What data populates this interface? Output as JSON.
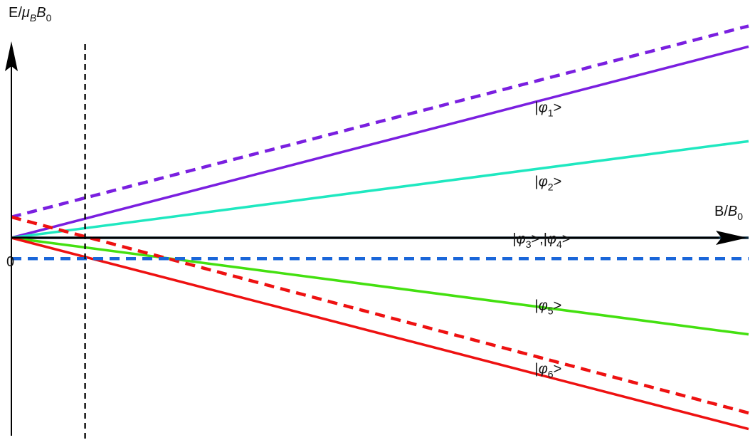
{
  "chart_data": {
    "type": "line",
    "title": "",
    "ylabel": {
      "prefix": "E/",
      "mu": "μ",
      "mu_sub": "B",
      "b": "B",
      "b_sub": "0"
    },
    "xlabel": {
      "prefix": "B/",
      "b": "B",
      "b_sub": "0"
    },
    "origin_label": "0",
    "xlim": [
      0,
      1
    ],
    "ylim": [
      -1,
      1
    ],
    "vertical_marker_x": 0.1,
    "colors": {
      "phi1": "#7a1fe0",
      "phi2": "#1fe8c0",
      "phi34": "#0a2a40",
      "phi5": "#44e010",
      "phi6": "#ee1111",
      "dashed_baseline": "#1a66d9",
      "marker": "#111111"
    },
    "series": [
      {
        "key": "phi1",
        "label": {
          "pre": "|",
          "sym": "φ",
          "sub": "1",
          "post": ">"
        },
        "style": "solid",
        "x": [
          0,
          1
        ],
        "y": [
          0,
          0.966
        ]
      },
      {
        "key": "phi1_dashed",
        "color_key": "phi1",
        "style": "dashed",
        "x": [
          0,
          1
        ],
        "y": [
          0.105,
          1.07
        ]
      },
      {
        "key": "phi2",
        "label": {
          "pre": "|",
          "sym": "φ",
          "sub": "2",
          "post": ">"
        },
        "style": "solid",
        "x": [
          0,
          1
        ],
        "y": [
          0,
          0.488
        ]
      },
      {
        "key": "phi34",
        "label": {
          "pre": "|",
          "sym": "φ",
          "sub": "3",
          "mid": ">,|",
          "sym2": "φ",
          "sub2": "4",
          "post": ">"
        },
        "style": "solid",
        "x": [
          0,
          1
        ],
        "y": [
          0,
          0
        ]
      },
      {
        "key": "phi5",
        "label": {
          "pre": "|",
          "sym": "φ",
          "sub": "5",
          "post": ">"
        },
        "style": "solid",
        "x": [
          0,
          1
        ],
        "y": [
          0,
          -0.488
        ]
      },
      {
        "key": "phi6",
        "label": {
          "pre": "|",
          "sym": "φ",
          "sub": "6",
          "post": ">"
        },
        "style": "solid",
        "x": [
          0,
          1
        ],
        "y": [
          0,
          -0.966
        ]
      },
      {
        "key": "phi6_dashed",
        "color_key": "phi6",
        "style": "dashed",
        "x": [
          0,
          1
        ],
        "y": [
          0.105,
          -0.885
        ]
      },
      {
        "key": "baseline_dashed",
        "color_key": "dashed_baseline",
        "style": "dashed",
        "x": [
          0,
          1
        ],
        "y": [
          -0.105,
          -0.105
        ]
      }
    ],
    "label_positions_x": {
      "phi1": 0.71,
      "phi2": 0.71,
      "phi34": 0.68,
      "phi5": 0.71,
      "phi6": 0.71
    }
  }
}
